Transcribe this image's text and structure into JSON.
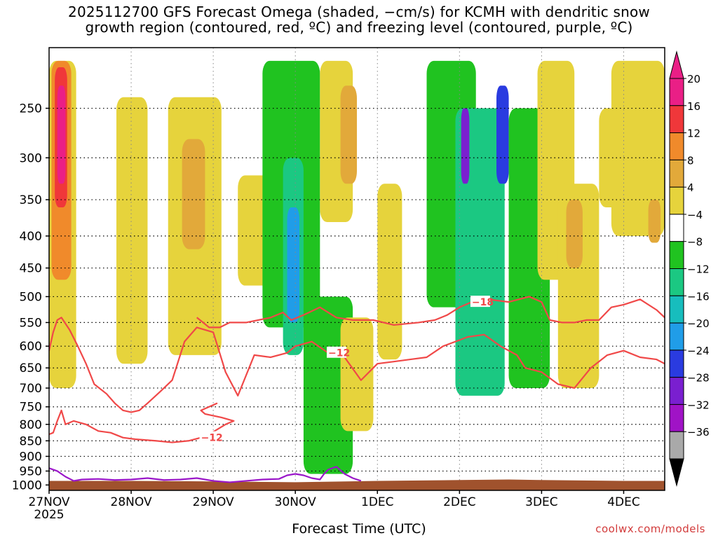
{
  "title_line1": "2025112700 GFS Forecast Omega (shaded, −cm/s) for KCMH with dendritic snow",
  "title_line2": "growth region (contoured, red, ºC) and freezing level (contoured, purple, ºC)",
  "xlabel": "Forecast Time (UTC)",
  "credit": "coolwx.com/models",
  "colors": {
    "ground": "#A0522D",
    "dgz_contour": "#f04848",
    "freezing_contour": "#9a17c9"
  },
  "chart_data": {
    "type": "heatmap",
    "title": "2025112700 GFS Forecast Omega (shaded, −cm/s) for KCMH with dendritic snow growth region (contoured, red, ºC) and freezing level (contoured, purple, ºC)",
    "xlabel": "Forecast Time (UTC)",
    "ylabel": "",
    "x_ticks": [
      {
        "label": "27NOV",
        "sublabel": "2025",
        "value": 0
      },
      {
        "label": "28NOV",
        "value": 1
      },
      {
        "label": "29NOV",
        "value": 2
      },
      {
        "label": "30NOV",
        "value": 3
      },
      {
        "label": "1DEC",
        "value": 4
      },
      {
        "label": "2DEC",
        "value": 5
      },
      {
        "label": "3DEC",
        "value": 6
      },
      {
        "label": "4DEC",
        "value": 7
      }
    ],
    "xlim": [
      0,
      7.5
    ],
    "y_ticks": [
      250,
      300,
      350,
      400,
      450,
      500,
      550,
      600,
      650,
      700,
      750,
      800,
      850,
      900,
      950,
      1000
    ],
    "y_tick_labels": [
      "250",
      "300",
      "350",
      "400",
      "450",
      "500",
      "550",
      "600",
      "650",
      "700",
      "750",
      "800",
      "850",
      "900",
      "950",
      "1000"
    ],
    "ylim": [
      200,
      1020
    ],
    "y_scale": "log-pressure",
    "colorbar": {
      "tick_labels": [
        "20",
        "16",
        "12",
        "8",
        "4",
        "−4",
        "−8",
        "−12",
        "−16",
        "−20",
        "−24",
        "−28",
        "−32",
        "−36"
      ],
      "bands": [
        {
          "range": [
            20,
            24
          ],
          "color": "#ea1f86"
        },
        {
          "range": [
            16,
            20
          ],
          "color": "#f0373a"
        },
        {
          "range": [
            12,
            16
          ],
          "color": "#f08a2b"
        },
        {
          "range": [
            8,
            12
          ],
          "color": "#e2a93a"
        },
        {
          "range": [
            4,
            8
          ],
          "color": "#e6d33c"
        },
        {
          "range": [
            -4,
            4
          ],
          "color": "#ffffff"
        },
        {
          "range": [
            -8,
            -4
          ],
          "color": "#20c320"
        },
        {
          "range": [
            -12,
            -8
          ],
          "color": "#1bc882"
        },
        {
          "range": [
            -16,
            -12
          ],
          "color": "#17bdbd"
        },
        {
          "range": [
            -20,
            -16
          ],
          "color": "#209de8"
        },
        {
          "range": [
            -24,
            -20
          ],
          "color": "#2a3be0"
        },
        {
          "range": [
            -28,
            -24
          ],
          "color": "#7a1fd0"
        },
        {
          "range": [
            -32,
            -28
          ],
          "color": "#a013c6"
        },
        {
          "range": [
            -36,
            -32
          ],
          "color": "#a9a9a9"
        }
      ]
    },
    "shaded_regions": [
      {
        "x": [
          0.0,
          0.33
        ],
        "p": [
          210,
          700
        ],
        "omega": 6
      },
      {
        "x": [
          0.03,
          0.27
        ],
        "p": [
          210,
          470
        ],
        "omega": 13
      },
      {
        "x": [
          0.07,
          0.22
        ],
        "p": [
          215,
          360
        ],
        "omega": 17
      },
      {
        "x": [
          0.1,
          0.2
        ],
        "p": [
          230,
          330
        ],
        "omega": 22
      },
      {
        "x": [
          0.82,
          1.2
        ],
        "p": [
          240,
          640
        ],
        "omega": 6
      },
      {
        "x": [
          1.45,
          2.1
        ],
        "p": [
          240,
          620
        ],
        "omega": 6
      },
      {
        "x": [
          1.62,
          1.9
        ],
        "p": [
          280,
          420
        ],
        "omega": 9
      },
      {
        "x": [
          2.3,
          2.9
        ],
        "p": [
          320,
          480
        ],
        "omega": 6
      },
      {
        "x": [
          2.6,
          3.3
        ],
        "p": [
          210,
          560
        ],
        "omega": -6
      },
      {
        "x": [
          2.85,
          3.1
        ],
        "p": [
          300,
          620
        ],
        "omega": -10
      },
      {
        "x": [
          2.9,
          3.05
        ],
        "p": [
          360,
          550
        ],
        "omega": -20
      },
      {
        "x": [
          3.1,
          3.7
        ],
        "p": [
          500,
          960
        ],
        "omega": -6
      },
      {
        "x": [
          3.3,
          3.7
        ],
        "p": [
          210,
          380
        ],
        "omega": 6
      },
      {
        "x": [
          3.55,
          3.75
        ],
        "p": [
          230,
          330
        ],
        "omega": 10
      },
      {
        "x": [
          3.55,
          3.95
        ],
        "p": [
          540,
          820
        ],
        "omega": 6
      },
      {
        "x": [
          4.0,
          4.3
        ],
        "p": [
          330,
          630
        ],
        "omega": 6
      },
      {
        "x": [
          4.6,
          5.2
        ],
        "p": [
          210,
          520
        ],
        "omega": -6
      },
      {
        "x": [
          4.95,
          5.55
        ],
        "p": [
          250,
          720
        ],
        "omega": -12
      },
      {
        "x": [
          5.02,
          5.12
        ],
        "p": [
          250,
          330
        ],
        "omega": -26
      },
      {
        "x": [
          5.45,
          5.6
        ],
        "p": [
          230,
          330
        ],
        "omega": -22
      },
      {
        "x": [
          5.6,
          6.1
        ],
        "p": [
          250,
          700
        ],
        "omega": -6
      },
      {
        "x": [
          5.95,
          6.4
        ],
        "p": [
          210,
          470
        ],
        "omega": 6
      },
      {
        "x": [
          6.2,
          6.7
        ],
        "p": [
          330,
          700
        ],
        "omega": 6
      },
      {
        "x": [
          6.3,
          6.5
        ],
        "p": [
          350,
          450
        ],
        "omega": 10
      },
      {
        "x": [
          6.7,
          6.95
        ],
        "p": [
          250,
          360
        ],
        "omega": 6
      },
      {
        "x": [
          6.85,
          7.5
        ],
        "p": [
          210,
          400
        ],
        "omega": 6
      },
      {
        "x": [
          7.3,
          7.45
        ],
        "p": [
          350,
          410
        ],
        "omega": 10
      }
    ],
    "series": [
      {
        "name": "-18 ºC isotherm (dendritic growth top)",
        "label": "−18",
        "x": [
          1.8,
          1.95,
          2.08,
          2.2,
          2.4,
          2.7,
          2.85,
          2.95,
          3.1,
          3.3,
          3.5,
          3.7,
          3.95,
          4.2,
          4.5,
          4.7,
          4.85,
          5.0,
          5.15,
          5.35,
          5.6,
          5.85,
          6.0,
          6.1,
          6.25,
          6.4,
          6.55,
          6.7,
          6.85,
          7.0,
          7.2,
          7.4,
          7.5
        ],
        "y": [
          540,
          560,
          560,
          550,
          550,
          540,
          530,
          545,
          535,
          520,
          540,
          545,
          545,
          555,
          550,
          545,
          535,
          520,
          510,
          505,
          510,
          500,
          510,
          545,
          550,
          550,
          545,
          545,
          520,
          515,
          505,
          525,
          540
        ]
      },
      {
        "name": "-12 ºC isotherm (dendritic growth bottom)",
        "label": "−12",
        "x": [
          0.0,
          0.05,
          0.1,
          0.15,
          0.25,
          0.35,
          0.45,
          0.55,
          0.7,
          0.8,
          0.9,
          1.0,
          1.1,
          1.2,
          1.35,
          1.5,
          1.65,
          1.8,
          2.0,
          2.15,
          2.3,
          2.5,
          2.7,
          2.9,
          3.0,
          3.2,
          3.4,
          3.6,
          3.8,
          4.0,
          4.2,
          4.4,
          4.6,
          4.8,
          4.95,
          5.1,
          5.3,
          5.5,
          5.7,
          5.8,
          6.0,
          6.2,
          6.4,
          6.6,
          6.8,
          7.0,
          7.2,
          7.4,
          7.5
        ],
        "y": [
          610,
          570,
          545,
          540,
          565,
          600,
          640,
          690,
          715,
          740,
          760,
          765,
          760,
          740,
          710,
          680,
          590,
          560,
          570,
          660,
          720,
          620,
          625,
          615,
          600,
          590,
          615,
          625,
          680,
          640,
          635,
          630,
          625,
          600,
          590,
          580,
          575,
          600,
          620,
          650,
          660,
          690,
          700,
          650,
          620,
          610,
          625,
          630,
          640
        ]
      },
      {
        "name": "-12 ºC isotherm (lower closed contour)",
        "label": "−12",
        "x": [
          0.0,
          0.05,
          0.1,
          0.15,
          0.2,
          0.3,
          0.45,
          0.6,
          0.75,
          0.9,
          1.05,
          1.3,
          1.5,
          1.7,
          1.85,
          1.95,
          2.05,
          2.15,
          2.25,
          2.1,
          1.9,
          1.85,
          2.05
        ],
        "y": [
          830,
          825,
          790,
          760,
          800,
          790,
          800,
          820,
          825,
          840,
          845,
          850,
          855,
          850,
          840,
          830,
          815,
          800,
          790,
          780,
          770,
          760,
          740
        ]
      },
      {
        "name": "0 ºC freezing level",
        "label": "",
        "x": [
          0.0,
          0.1,
          0.2,
          0.3,
          0.4,
          0.6,
          0.8,
          1.0,
          1.2,
          1.4,
          1.6,
          1.8,
          2.0,
          2.2,
          2.4,
          2.6,
          2.8,
          2.9,
          3.0,
          3.1,
          3.2,
          3.3,
          3.35,
          3.4,
          3.5,
          3.6,
          3.7,
          3.8
        ],
        "y": [
          940,
          950,
          970,
          985,
          980,
          978,
          982,
          980,
          975,
          982,
          980,
          975,
          985,
          990,
          985,
          980,
          978,
          965,
          960,
          965,
          975,
          980,
          960,
          945,
          935,
          960,
          975,
          985
        ]
      }
    ],
    "ground_surface": {
      "x": [
        0,
        1,
        2,
        3,
        4,
        5,
        5.6,
        6,
        7,
        7.5
      ],
      "p": [
        985,
        985,
        987,
        990,
        985,
        982,
        980,
        982,
        985,
        985
      ]
    }
  }
}
